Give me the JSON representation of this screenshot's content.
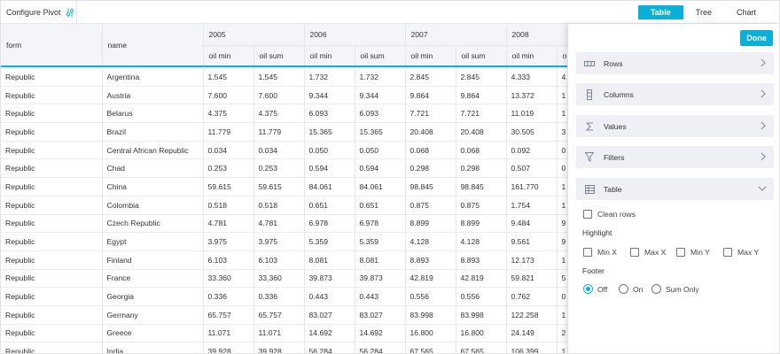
{
  "toolbar": {
    "configure_label": "Configure Pivot",
    "configure_icon": "settings-sliders-icon",
    "tabs": [
      {
        "label": "Table",
        "active": true
      },
      {
        "label": "Tree",
        "active": false
      },
      {
        "label": "Chart",
        "active": false
      }
    ]
  },
  "grid": {
    "row_headers": [
      "form",
      "name"
    ],
    "years": [
      "2005",
      "2006",
      "2007",
      "2008",
      ""
    ],
    "measures": [
      "oil min",
      "oil sum",
      "oil min",
      "oil sum",
      "oil min",
      "oil sum",
      "oil min",
      "o"
    ],
    "rows": [
      [
        "Republic",
        "Argentina",
        "1.545",
        "1.545",
        "1.732",
        "1.732",
        "2.845",
        "2.845",
        "4.333",
        "4"
      ],
      [
        "Republic",
        "Austria",
        "7.600",
        "7.600",
        "9.344",
        "9.344",
        "9.864",
        "9.864",
        "13.372",
        "1"
      ],
      [
        "Republic",
        "Belarus",
        "4.375",
        "4.375",
        "6.093",
        "6.093",
        "7.721",
        "7.721",
        "11.019",
        "1"
      ],
      [
        "Republic",
        "Brazil",
        "11.779",
        "11.779",
        "15.365",
        "15.365",
        "20.408",
        "20.408",
        "30.505",
        "3"
      ],
      [
        "Republic",
        "Central African Republic",
        "0.034",
        "0.034",
        "0.050",
        "0.050",
        "0.068",
        "0.068",
        "0.092",
        "0"
      ],
      [
        "Republic",
        "Chad",
        "0.253",
        "0.253",
        "0.594",
        "0.594",
        "0.298",
        "0.298",
        "0.507",
        "0"
      ],
      [
        "Republic",
        "China",
        "59.615",
        "59.615",
        "84.061",
        "84.061",
        "98.845",
        "98.845",
        "161.770",
        "1"
      ],
      [
        "Republic",
        "Colombia",
        "0.518",
        "0.518",
        "0.651",
        "0.651",
        "0.875",
        "0.875",
        "1.754",
        "1"
      ],
      [
        "Republic",
        "Czech Republic",
        "4.781",
        "4.781",
        "6.978",
        "6.978",
        "8.899",
        "8.899",
        "9.484",
        "9"
      ],
      [
        "Republic",
        "Egypt",
        "3.975",
        "3.975",
        "5.359",
        "5.359",
        "4.128",
        "4.128",
        "9.561",
        "9"
      ],
      [
        "Republic",
        "Finland",
        "6.103",
        "6.103",
        "8.081",
        "8.081",
        "8.893",
        "8.893",
        "12.173",
        "1"
      ],
      [
        "Republic",
        "France",
        "33.360",
        "33.360",
        "39.873",
        "39.873",
        "42.819",
        "42.819",
        "59.821",
        "5"
      ],
      [
        "Republic",
        "Georgia",
        "0.336",
        "0.336",
        "0.443",
        "0.443",
        "0.556",
        "0.556",
        "0.762",
        "0"
      ],
      [
        "Republic",
        "Germany",
        "65.757",
        "65.757",
        "83.027",
        "83.027",
        "83.998",
        "83.998",
        "122.258",
        "1"
      ],
      [
        "Republic",
        "Greece",
        "11.071",
        "11.071",
        "14.692",
        "14.692",
        "16.800",
        "16.800",
        "24.149",
        "2"
      ],
      [
        "Republic",
        "India",
        "39.928",
        "39.928",
        "56.284",
        "56.284",
        "67.565",
        "67.565",
        "106.399",
        "1"
      ]
    ]
  },
  "panel": {
    "done_label": "Done",
    "sections": [
      {
        "label": "Rows",
        "icon": "rows-icon",
        "expanded": false
      },
      {
        "label": "Columns",
        "icon": "columns-icon",
        "expanded": false
      },
      {
        "label": "Values",
        "icon": "sigma-icon",
        "expanded": false
      },
      {
        "label": "Filters",
        "icon": "filter-icon",
        "expanded": false
      },
      {
        "label": "Table",
        "icon": "table-icon",
        "expanded": true
      }
    ],
    "table_options": {
      "clean_rows_label": "Clean rows",
      "highlight_title": "Highlight",
      "highlight_options": [
        "Min X",
        "Max X",
        "Min Y",
        "Max Y"
      ],
      "footer_title": "Footer",
      "footer_options": [
        "Off",
        "On",
        "Sum Only"
      ],
      "footer_selected": "Off"
    }
  },
  "colors": {
    "accent": "#0ab0d8",
    "header_bg": "#f4f5f9",
    "section_bg": "#eef0f6"
  }
}
